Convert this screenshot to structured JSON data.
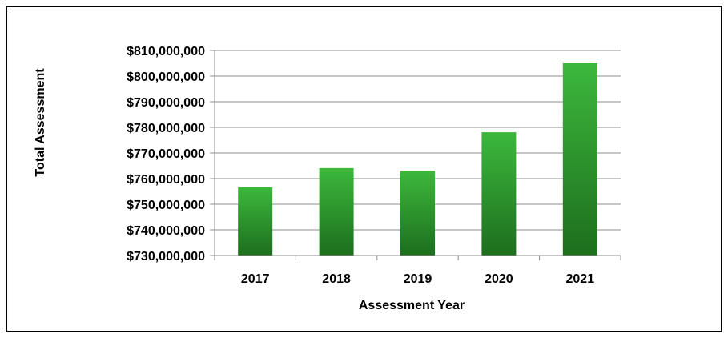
{
  "chart_data": {
    "type": "bar",
    "title": "",
    "xlabel": "Assessment Year",
    "ylabel": "Total Assessment",
    "categories": [
      "2017",
      "2018",
      "2019",
      "2020",
      "2021"
    ],
    "values": [
      756700000,
      764100000,
      763100000,
      778100000,
      805000000
    ],
    "ylim": [
      730000000,
      810000000
    ],
    "ytick_step": 10000000,
    "ytick_labels": [
      "$730,000,000",
      "$740,000,000",
      "$750,000,000",
      "$760,000,000",
      "$770,000,000",
      "$780,000,000",
      "$790,000,000",
      "$800,000,000",
      "$810,000,000"
    ],
    "grid": true,
    "legend": "none",
    "colors": {
      "bar_top": "#3cb83c",
      "bar_bottom": "#1d6e1d",
      "grid": "#8c8c8c",
      "axis": "#8c8c8c"
    }
  }
}
